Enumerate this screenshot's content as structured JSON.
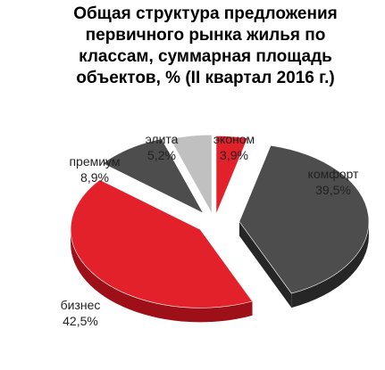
{
  "chart_data": {
    "type": "pie",
    "style": "exploded 3D pie",
    "title_lines": [
      "Общая структура предложения",
      "первичного рынка жилья по",
      "классам, суммарная площадь",
      "объектов, % (II квартал 2016 г.)"
    ],
    "slices": [
      {
        "name": "эконом",
        "value": 3.9,
        "value_label": "3,9%",
        "color": "#e3212b",
        "side": "#9e1018"
      },
      {
        "name": "комфорт",
        "value": 39.5,
        "value_label": "39,5%",
        "color": "#4d4d4d",
        "side": "#262626"
      },
      {
        "name": "бизнес",
        "value": 42.5,
        "value_label": "42,5%",
        "color": "#e3212b",
        "side": "#9e1018"
      },
      {
        "name": "премиум",
        "value": 8.9,
        "value_label": "8,9%",
        "color": "#4d4d4d",
        "side": "#262626"
      },
      {
        "name": "элита",
        "value": 5.2,
        "value_label": "5,2%",
        "color": "#c0c0c0",
        "side": "#8a8a8a"
      }
    ]
  }
}
